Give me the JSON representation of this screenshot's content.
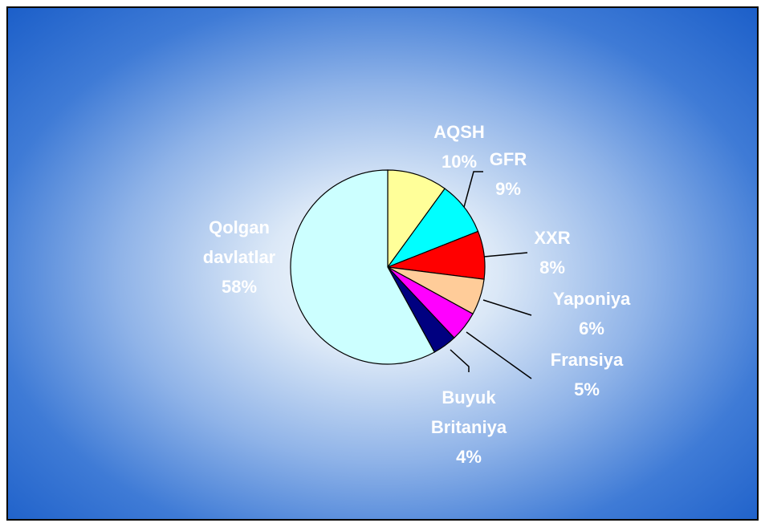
{
  "chart_data": {
    "type": "pie",
    "categories": [
      "AQSH",
      "GFR",
      "XXR",
      "Yaponiya",
      "Fransiya",
      "Buyuk Britaniya",
      "Qolgan davlatlar"
    ],
    "values": [
      10,
      9,
      8,
      6,
      5,
      4,
      58
    ],
    "value_labels": [
      "10%",
      "9%",
      "8%",
      "6%",
      "5%",
      "4%",
      "58%"
    ],
    "colors": [
      "#ffff99",
      "#00ffff",
      "#ff0000",
      "#ffcc99",
      "#ff00ff",
      "#000080",
      "#ccffff"
    ]
  }
}
